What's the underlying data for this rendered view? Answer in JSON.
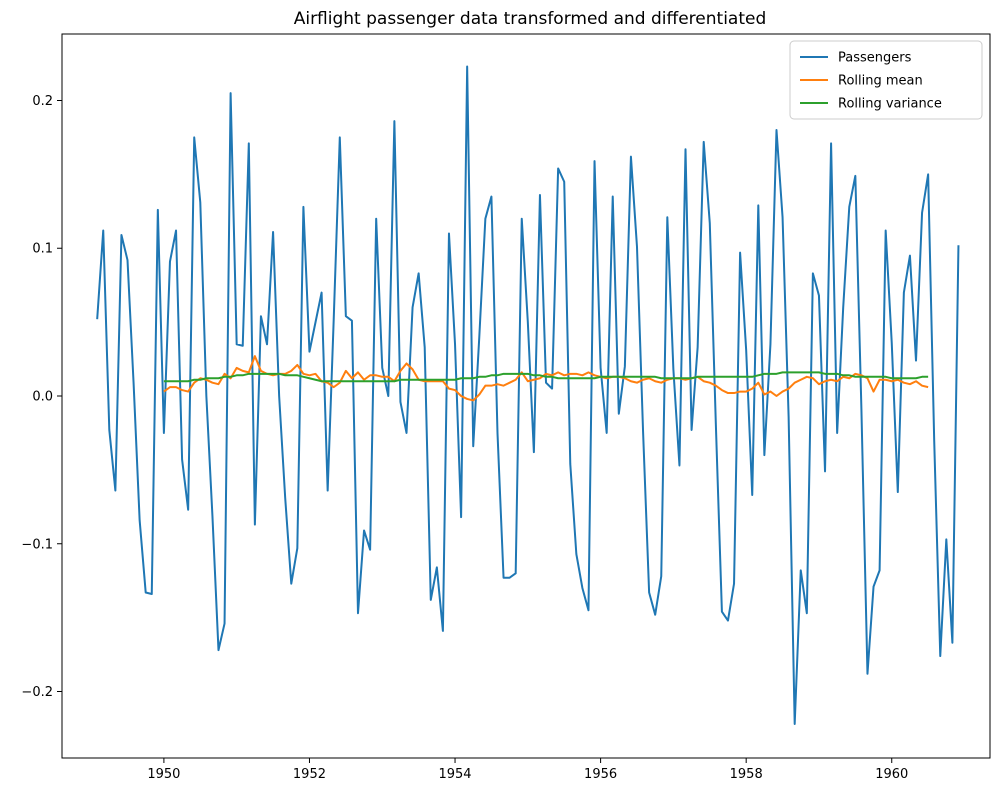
{
  "chart_data": {
    "type": "line",
    "title": "Airflight passenger data transformed and differentiated",
    "xlabel": "",
    "ylabel": "",
    "xlim": [
      1948.6,
      1961.35
    ],
    "ylim": [
      -0.245,
      0.245
    ],
    "x_ticks": [
      1950,
      1952,
      1954,
      1956,
      1958,
      1960
    ],
    "x_tick_labels": [
      "1950",
      "1952",
      "1954",
      "1956",
      "1958",
      "1960"
    ],
    "y_ticks": [
      -0.2,
      -0.1,
      0.0,
      0.1,
      0.2
    ],
    "y_tick_labels": [
      "−0.2",
      "−0.1",
      "0.0",
      "0.1",
      "0.2"
    ],
    "grid": false,
    "legend_position": "top-right",
    "x_start": 1949.0833,
    "x_step": 0.083333,
    "series": [
      {
        "name": "Passengers",
        "color": "#1f77b4",
        "values": [
          0.052,
          0.112,
          -0.023,
          -0.064,
          0.109,
          0.092,
          0.009,
          -0.084,
          -0.133,
          -0.134,
          0.126,
          -0.025,
          0.091,
          0.112,
          -0.043,
          -0.077,
          0.175,
          0.131,
          0.0,
          -0.081,
          -0.172,
          -0.154,
          0.205,
          0.035,
          0.034,
          0.171,
          -0.087,
          0.054,
          0.035,
          0.111,
          0.0,
          -0.069,
          -0.127,
          -0.103,
          0.128,
          0.03,
          0.05,
          0.07,
          -0.064,
          0.052,
          0.175,
          0.054,
          0.051,
          -0.147,
          -0.091,
          -0.104,
          0.12,
          0.019,
          0.0,
          0.186,
          -0.004,
          -0.025,
          0.06,
          0.083,
          0.033,
          -0.138,
          -0.116,
          -0.159,
          0.11,
          0.035,
          -0.082,
          0.223,
          -0.034,
          0.04,
          0.12,
          0.135,
          -0.025,
          -0.123,
          -0.123,
          -0.12,
          0.12,
          0.05,
          -0.038,
          0.136,
          0.009,
          0.005,
          0.154,
          0.145,
          -0.046,
          -0.107,
          -0.13,
          -0.145,
          0.159,
          0.019,
          -0.025,
          0.135,
          -0.012,
          0.02,
          0.162,
          0.101,
          -0.024,
          -0.133,
          -0.148,
          -0.122,
          0.121,
          0.018,
          -0.047,
          0.167,
          -0.023,
          0.033,
          0.172,
          0.117,
          -0.019,
          -0.146,
          -0.152,
          -0.127,
          0.097,
          0.031,
          -0.067,
          0.129,
          -0.04,
          0.035,
          0.18,
          0.121,
          -0.014,
          -0.222,
          -0.118,
          -0.147,
          0.083,
          0.068,
          -0.051,
          0.171,
          -0.025,
          0.06,
          0.128,
          0.149,
          -0.009,
          -0.188,
          -0.129,
          -0.118,
          0.112,
          0.036,
          -0.065,
          0.07,
          0.095,
          0.024,
          0.124,
          0.15,
          -0.03,
          -0.176,
          -0.097,
          -0.167,
          0.102
        ]
      },
      {
        "name": "Rolling mean",
        "color": "#ff7f0e",
        "x_start": 1950.0,
        "values": [
          0.003,
          0.006,
          0.006,
          0.004,
          0.003,
          0.009,
          0.012,
          0.011,
          0.009,
          0.008,
          0.015,
          0.012,
          0.019,
          0.017,
          0.016,
          0.027,
          0.017,
          0.015,
          0.014,
          0.015,
          0.015,
          0.017,
          0.021,
          0.015,
          0.014,
          0.015,
          0.01,
          0.009,
          0.006,
          0.009,
          0.017,
          0.012,
          0.016,
          0.011,
          0.014,
          0.014,
          0.013,
          0.013,
          0.01,
          0.017,
          0.022,
          0.018,
          0.011,
          0.01,
          0.01,
          0.01,
          0.01,
          0.005,
          0.004,
          0.0,
          -0.002,
          -0.003,
          0.001,
          0.007,
          0.007,
          0.008,
          0.007,
          0.009,
          0.011,
          0.016,
          0.01,
          0.011,
          0.012,
          0.015,
          0.014,
          0.016,
          0.014,
          0.015,
          0.015,
          0.014,
          0.016,
          0.014,
          0.013,
          0.012,
          0.013,
          0.013,
          0.012,
          0.01,
          0.009,
          0.011,
          0.012,
          0.01,
          0.009,
          0.011,
          0.012,
          0.012,
          0.011,
          0.012,
          0.013,
          0.01,
          0.009,
          0.007,
          0.004,
          0.002,
          0.002,
          0.003,
          0.003,
          0.005,
          0.009,
          0.001,
          0.003,
          0.0,
          0.003,
          0.005,
          0.009,
          0.011,
          0.013,
          0.012,
          0.008,
          0.01,
          0.011,
          0.01,
          0.013,
          0.012,
          0.015,
          0.014,
          0.012,
          0.003,
          0.011,
          0.011,
          0.01,
          0.011,
          0.009,
          0.008,
          0.01,
          0.007,
          0.006
        ]
      },
      {
        "name": "Rolling variance",
        "color": "#2ca02c",
        "x_start": 1950.0,
        "values": [
          0.01,
          0.01,
          0.01,
          0.01,
          0.01,
          0.011,
          0.011,
          0.012,
          0.012,
          0.012,
          0.013,
          0.013,
          0.014,
          0.014,
          0.015,
          0.015,
          0.015,
          0.015,
          0.015,
          0.015,
          0.014,
          0.014,
          0.014,
          0.013,
          0.012,
          0.011,
          0.01,
          0.01,
          0.01,
          0.01,
          0.01,
          0.01,
          0.01,
          0.01,
          0.01,
          0.01,
          0.01,
          0.01,
          0.01,
          0.011,
          0.011,
          0.011,
          0.011,
          0.011,
          0.011,
          0.011,
          0.011,
          0.011,
          0.011,
          0.012,
          0.012,
          0.012,
          0.013,
          0.013,
          0.014,
          0.014,
          0.015,
          0.015,
          0.015,
          0.015,
          0.015,
          0.014,
          0.014,
          0.013,
          0.013,
          0.012,
          0.012,
          0.012,
          0.012,
          0.012,
          0.012,
          0.012,
          0.013,
          0.013,
          0.013,
          0.013,
          0.013,
          0.013,
          0.013,
          0.013,
          0.013,
          0.013,
          0.012,
          0.012,
          0.012,
          0.012,
          0.012,
          0.012,
          0.013,
          0.013,
          0.013,
          0.013,
          0.013,
          0.013,
          0.013,
          0.013,
          0.013,
          0.013,
          0.014,
          0.015,
          0.015,
          0.015,
          0.016,
          0.016,
          0.016,
          0.016,
          0.016,
          0.016,
          0.016,
          0.015,
          0.015,
          0.015,
          0.014,
          0.014,
          0.013,
          0.013,
          0.013,
          0.013,
          0.013,
          0.013,
          0.012,
          0.012,
          0.012,
          0.012,
          0.012,
          0.013,
          0.013
        ]
      }
    ]
  }
}
